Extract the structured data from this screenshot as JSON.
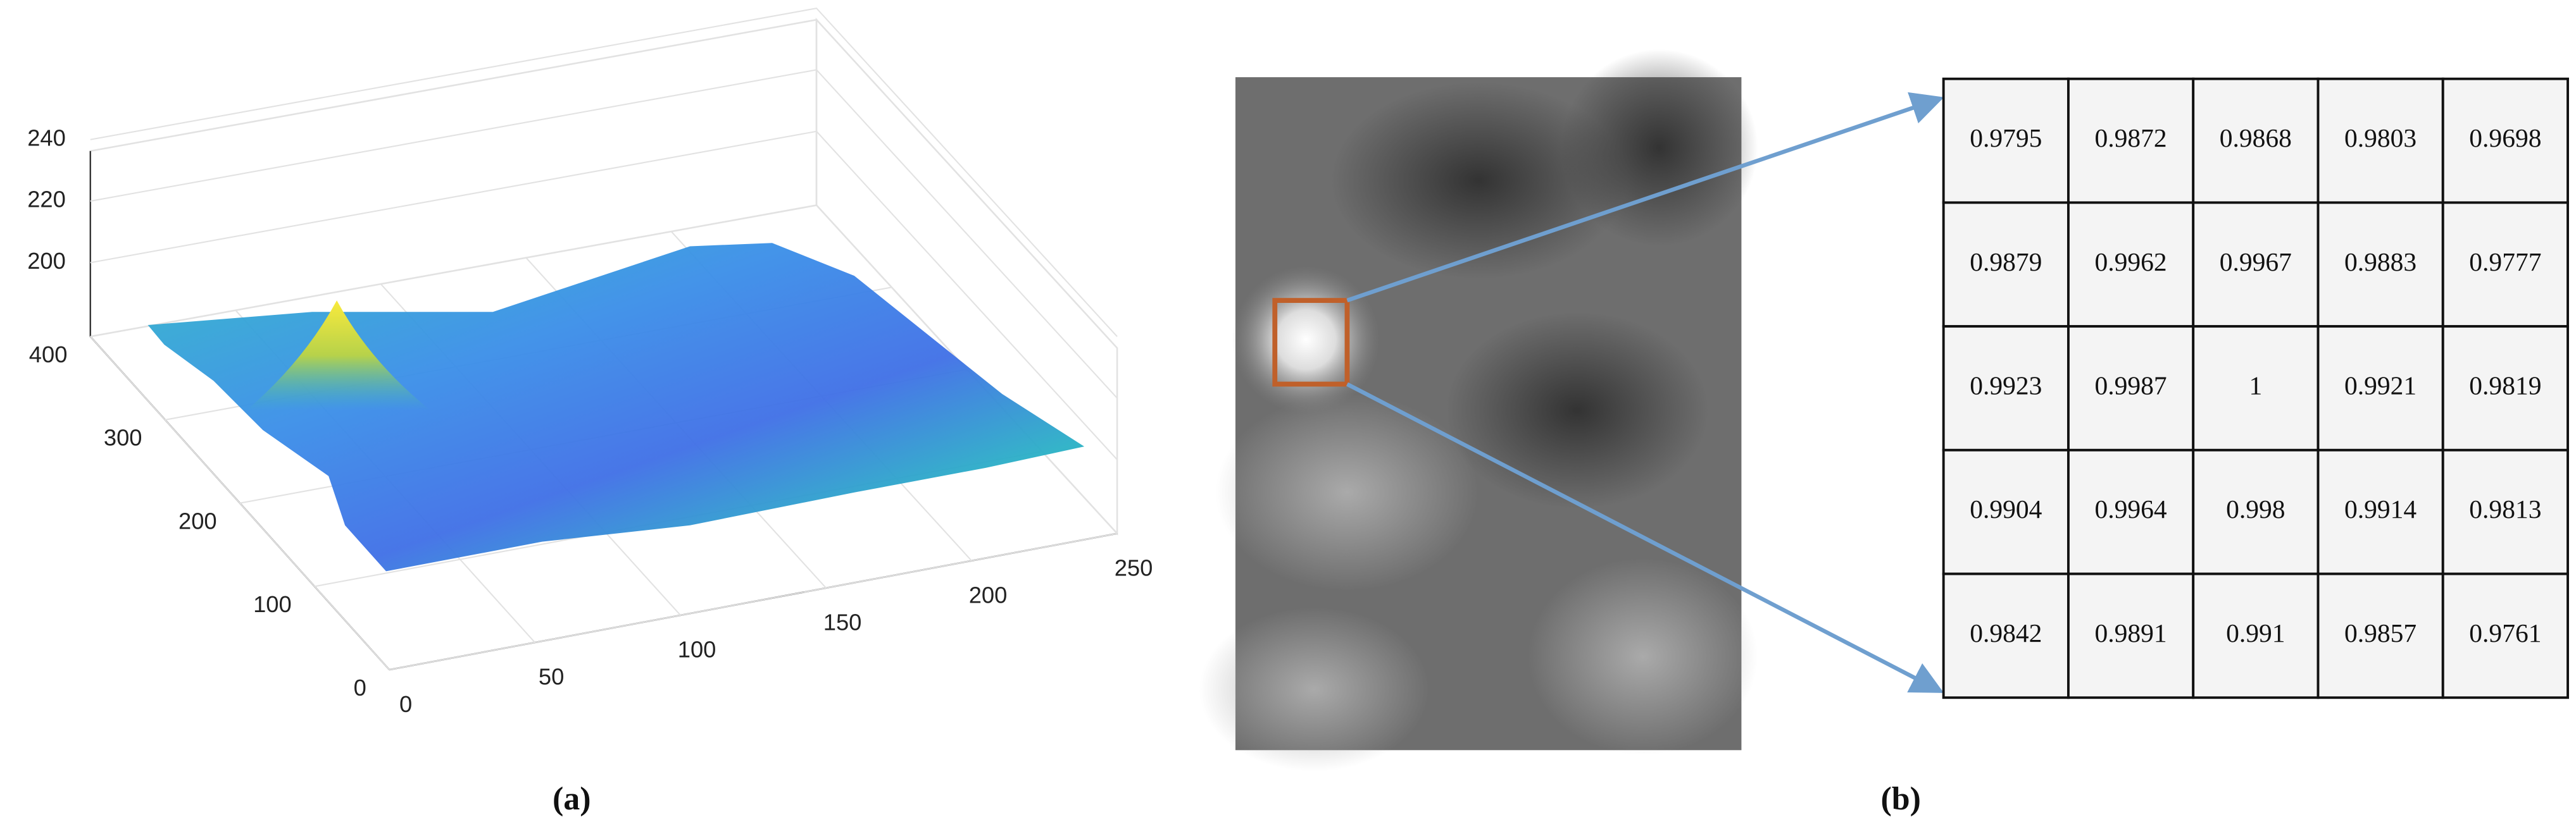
{
  "panel_a": {
    "caption": "(a)",
    "x_ticks": [
      0,
      50,
      100,
      150,
      200,
      250
    ],
    "y_ticks": [
      0,
      100,
      200,
      300,
      400
    ],
    "z_ticks": [
      200,
      220,
      240
    ]
  },
  "panel_b": {
    "caption": "(b)",
    "table": {
      "rows": [
        [
          0.9795,
          0.9872,
          0.9868,
          0.9803,
          0.9698
        ],
        [
          0.9879,
          0.9962,
          0.9967,
          0.9883,
          0.9777
        ],
        [
          0.9923,
          0.9987,
          1,
          0.9921,
          0.9819
        ],
        [
          0.9904,
          0.9964,
          0.998,
          0.9914,
          0.9813
        ],
        [
          0.9842,
          0.9891,
          0.991,
          0.9857,
          0.9761
        ]
      ]
    }
  }
}
